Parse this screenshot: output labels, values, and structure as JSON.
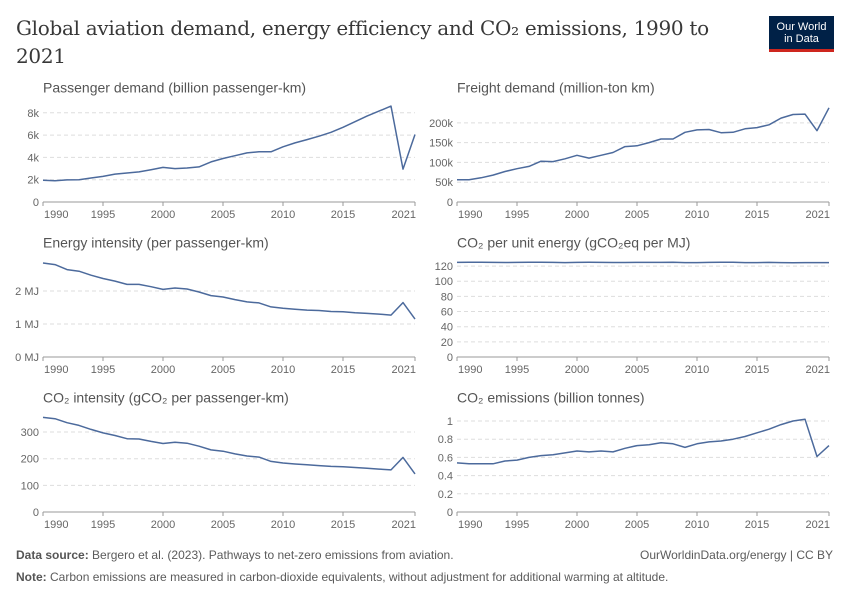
{
  "title": "Global aviation demand, energy efficiency and CO₂ emissions, 1990 to 2021",
  "logo": {
    "line1": "Our World",
    "line2": "in Data",
    "bg": "#002147",
    "accent": "#ce261e"
  },
  "footer": {
    "source_label": "Data source:",
    "source_text": "Bergero et al. (2023). Pathways to net-zero emissions from aviation.",
    "url": "OurWorldinData.org/energy | CC BY",
    "note_label": "Note:",
    "note_text": "Carbon emissions are measured in carbon-dioxide equivalents, without adjustment for additional warming at altitude."
  },
  "line_color": "#4c6a9c",
  "chart_data": [
    {
      "type": "line",
      "title": "Passenger demand (billion passenger-km)",
      "x": [
        1990,
        1991,
        1992,
        1993,
        1994,
        1995,
        1996,
        1997,
        1998,
        1999,
        2000,
        2001,
        2002,
        2003,
        2004,
        2005,
        2006,
        2007,
        2008,
        2009,
        2010,
        2011,
        2012,
        2013,
        2014,
        2015,
        2016,
        2017,
        2018,
        2019,
        2020,
        2021
      ],
      "values": [
        1950,
        1900,
        1980,
        2000,
        2150,
        2300,
        2500,
        2600,
        2700,
        2900,
        3100,
        3000,
        3050,
        3150,
        3600,
        3900,
        4150,
        4400,
        4500,
        4500,
        4950,
        5300,
        5600,
        5900,
        6250,
        6700,
        7200,
        7700,
        8150,
        8600,
        2950,
        6050
      ],
      "ylim": [
        0,
        8700
      ],
      "yticks": [
        0,
        2000,
        4000,
        6000,
        8000
      ],
      "ytick_labels": [
        "0",
        "2k",
        "4k",
        "6k",
        "8k"
      ],
      "xticks": [
        1990,
        1995,
        2000,
        2005,
        2010,
        2015,
        2021
      ],
      "grid": true
    },
    {
      "type": "line",
      "title": "Freight demand (million-ton km)",
      "x": [
        1990,
        1991,
        1992,
        1993,
        1994,
        1995,
        1996,
        1997,
        1998,
        1999,
        2000,
        2001,
        2002,
        2003,
        2004,
        2005,
        2006,
        2007,
        2008,
        2009,
        2010,
        2011,
        2012,
        2013,
        2014,
        2015,
        2016,
        2017,
        2018,
        2019,
        2020,
        2021
      ],
      "values": [
        56000,
        56000,
        61000,
        68000,
        77000,
        84000,
        90000,
        103000,
        102000,
        109000,
        118000,
        111000,
        118000,
        125000,
        140000,
        142000,
        150000,
        159000,
        159000,
        176000,
        182000,
        183000,
        175000,
        176000,
        185000,
        188000,
        195000,
        212000,
        221000,
        222000,
        180000,
        238000
      ],
      "ylim": [
        0,
        245000
      ],
      "yticks": [
        0,
        50000,
        100000,
        150000,
        200000
      ],
      "ytick_labels": [
        "0",
        "50k",
        "100k",
        "150k",
        "200k"
      ],
      "xticks": [
        1990,
        1995,
        2000,
        2005,
        2010,
        2015,
        2021
      ],
      "grid": true
    },
    {
      "type": "line",
      "title": "Energy intensity (per passenger-km)",
      "x": [
        1990,
        1991,
        1992,
        1993,
        1994,
        1995,
        1996,
        1997,
        1998,
        1999,
        2000,
        2001,
        2002,
        2003,
        2004,
        2005,
        2006,
        2007,
        2008,
        2009,
        2010,
        2011,
        2012,
        2013,
        2014,
        2015,
        2016,
        2017,
        2018,
        2019,
        2020,
        2021
      ],
      "values": [
        2.85,
        2.8,
        2.65,
        2.6,
        2.48,
        2.38,
        2.3,
        2.2,
        2.2,
        2.13,
        2.05,
        2.09,
        2.06,
        1.97,
        1.86,
        1.82,
        1.74,
        1.67,
        1.64,
        1.52,
        1.48,
        1.45,
        1.42,
        1.41,
        1.38,
        1.37,
        1.34,
        1.32,
        1.3,
        1.27,
        1.65,
        1.15
      ],
      "ylim": [
        0,
        2.94
      ],
      "yticks": [
        0,
        1,
        2
      ],
      "ytick_labels": [
        "0 MJ",
        "1 MJ",
        "2 MJ"
      ],
      "xticks": [
        1990,
        1995,
        2000,
        2005,
        2010,
        2015,
        2021
      ],
      "grid": true
    },
    {
      "type": "line",
      "title": "CO₂ per unit energy (gCO₂eq per MJ)",
      "x": [
        1990,
        1991,
        1992,
        1993,
        1994,
        1995,
        1996,
        1997,
        1998,
        1999,
        2000,
        2001,
        2002,
        2003,
        2004,
        2005,
        2006,
        2007,
        2008,
        2009,
        2010,
        2011,
        2012,
        2013,
        2014,
        2015,
        2016,
        2017,
        2018,
        2019,
        2020,
        2021
      ],
      "values": [
        124.8,
        124.9,
        124.9,
        124.8,
        124.7,
        124.8,
        124.9,
        124.9,
        124.8,
        124.6,
        124.8,
        124.9,
        124.8,
        124.7,
        124.7,
        124.8,
        124.8,
        124.8,
        124.9,
        124.6,
        124.6,
        124.8,
        125.1,
        124.9,
        124.6,
        124.6,
        124.8,
        124.6,
        124.3,
        124.6,
        124.6,
        124.6
      ],
      "ylim": [
        0,
        128
      ],
      "yticks": [
        0,
        20,
        40,
        60,
        80,
        100,
        120
      ],
      "ytick_labels": [
        "0",
        "20",
        "40",
        "60",
        "80",
        "100",
        "120"
      ],
      "xticks": [
        1990,
        1995,
        2000,
        2005,
        2010,
        2015,
        2021
      ],
      "grid": true
    },
    {
      "type": "line",
      "title": "CO₂ intensity (gCO₂ per passenger-km)",
      "x": [
        1990,
        1991,
        1992,
        1993,
        1994,
        1995,
        1996,
        1997,
        1998,
        1999,
        2000,
        2001,
        2002,
        2003,
        2004,
        2005,
        2006,
        2007,
        2008,
        2009,
        2010,
        2011,
        2012,
        2013,
        2014,
        2015,
        2016,
        2017,
        2018,
        2019,
        2020,
        2021
      ],
      "values": [
        355,
        350,
        335,
        325,
        310,
        297,
        287,
        275,
        274,
        265,
        257,
        262,
        258,
        247,
        233,
        228,
        218,
        210,
        206,
        190,
        184,
        180,
        177,
        174,
        171,
        170,
        167,
        164,
        161,
        158,
        205,
        143
      ],
      "ylim": [
        0,
        364
      ],
      "yticks": [
        0,
        100,
        200,
        300
      ],
      "ytick_labels": [
        "0",
        "100",
        "200",
        "300"
      ],
      "xticks": [
        1990,
        1995,
        2000,
        2005,
        2010,
        2015,
        2021
      ],
      "grid": true
    },
    {
      "type": "line",
      "title": "CO₂ emissions (billion tonnes)",
      "x": [
        1990,
        1991,
        1992,
        1993,
        1994,
        1995,
        1996,
        1997,
        1998,
        1999,
        2000,
        2001,
        2002,
        2003,
        2004,
        2005,
        2006,
        2007,
        2008,
        2009,
        2010,
        2011,
        2012,
        2013,
        2014,
        2015,
        2016,
        2017,
        2018,
        2019,
        2020,
        2021
      ],
      "values": [
        0.54,
        0.53,
        0.53,
        0.53,
        0.56,
        0.57,
        0.6,
        0.62,
        0.63,
        0.65,
        0.67,
        0.66,
        0.67,
        0.66,
        0.7,
        0.73,
        0.74,
        0.76,
        0.75,
        0.71,
        0.75,
        0.77,
        0.78,
        0.8,
        0.83,
        0.87,
        0.91,
        0.96,
        1.0,
        1.02,
        0.61,
        0.73
      ],
      "ylim": [
        0,
        1.066
      ],
      "yticks": [
        0,
        0.2,
        0.4,
        0.6,
        0.8,
        1
      ],
      "ytick_labels": [
        "0",
        "0.2",
        "0.4",
        "0.6",
        "0.8",
        "1"
      ],
      "xticks": [
        1990,
        1995,
        2000,
        2005,
        2010,
        2015,
        2021
      ],
      "grid": true
    }
  ]
}
